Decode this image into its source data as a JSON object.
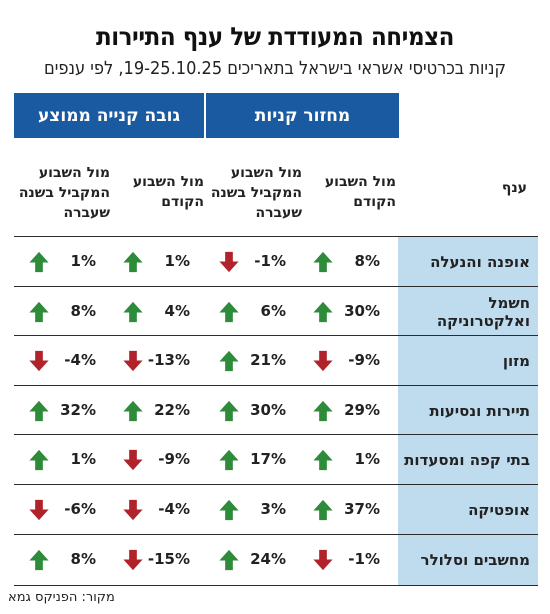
{
  "title": "הצמיחה המעודדת של ענף התיירות",
  "subtitle": "קניות בכרטיסי אשראי בישראל בתאריכים 19-25.10.25, לפי ענפים",
  "groups": {
    "purchase_volume": "מחזור קניות",
    "avg_purchase": "גובה קנייה ממוצע"
  },
  "columns": {
    "branch": "ענף",
    "vs_prev_week": "מול השבוע הקודם",
    "vs_same_week_last_year": "מול השבוע המקביל בשנה שעברה"
  },
  "colors": {
    "header_blue": "#1a5aa0",
    "branch_bg": "#bfdcef",
    "up": "#2e8b3a",
    "down": "#b0232a"
  },
  "source": "מקור: הפניקס גמא",
  "chart_data": {
    "type": "table",
    "title": "הצמיחה המעודדת של ענף התיירות",
    "subtitle": "קניות בכרטיסי אשראי בישראל בתאריכים 19-25.10.25, לפי ענפים",
    "columns": [
      "ענף",
      "מחזור קניות - מול השבוע הקודם",
      "מחזור קניות - מול השבוע המקביל בשנה שעברה",
      "גובה קנייה ממוצע - מול השבוע הקודם",
      "גובה קנייה ממוצע - מול השבוע המקביל בשנה שעברה"
    ],
    "rows": [
      {
        "branch": "אופנה והנעלה",
        "values": [
          8,
          -1,
          1,
          1
        ],
        "labels": [
          "8%",
          "-1%",
          "1%",
          "1%"
        ]
      },
      {
        "branch": "חשמל ואלקטרוניקה",
        "values": [
          30,
          6,
          4,
          8
        ],
        "labels": [
          "30%",
          "6%",
          "4%",
          "8%"
        ]
      },
      {
        "branch": "מזון",
        "values": [
          -9,
          21,
          -13,
          -4
        ],
        "labels": [
          "-9%",
          "21%",
          "-13%",
          "-4%"
        ]
      },
      {
        "branch": "תיירות ונסיעות",
        "values": [
          29,
          30,
          22,
          32
        ],
        "labels": [
          "29%",
          "30%",
          "22%",
          "32%"
        ]
      },
      {
        "branch": "בתי קפה ומסעדות",
        "values": [
          1,
          17,
          -9,
          1
        ],
        "labels": [
          "1%",
          "17%",
          "-9%",
          "1%"
        ]
      },
      {
        "branch": "אופטיקה",
        "values": [
          37,
          3,
          -4,
          -6
        ],
        "labels": [
          "37%",
          "3%",
          "-4%",
          "-6%"
        ]
      },
      {
        "branch": "מחשבים וסלולר",
        "values": [
          -1,
          24,
          -15,
          8
        ],
        "labels": [
          "-1%",
          "24%",
          "-15%",
          "8%"
        ]
      }
    ]
  }
}
